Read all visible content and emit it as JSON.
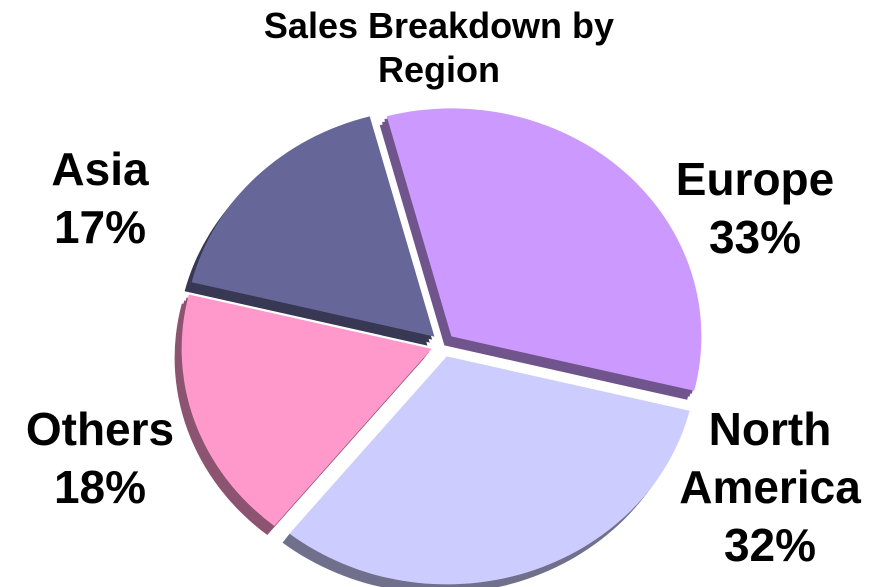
{
  "chart_data": {
    "type": "pie",
    "title": "Sales Breakdown by Region",
    "categories": [
      "Europe",
      "North America",
      "Others",
      "Asia"
    ],
    "values": [
      33,
      32,
      18,
      17
    ],
    "value_labels": [
      "33%",
      "32%",
      "18%",
      "17%"
    ],
    "colors": [
      "#cc99ff",
      "#ccccff",
      "#ff99cc",
      "#666699"
    ]
  }
}
